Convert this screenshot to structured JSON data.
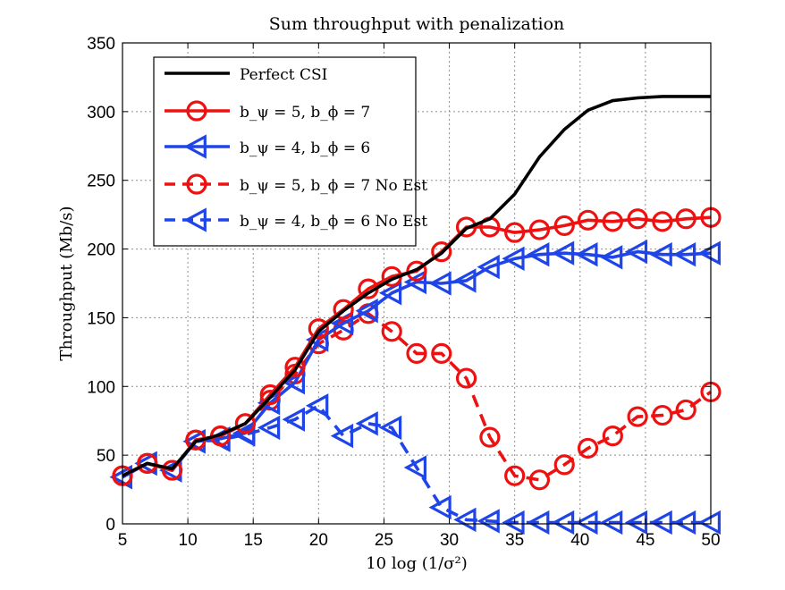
{
  "chart_data": {
    "type": "line",
    "title": "Sum throughput with penalization",
    "xlabel": "10 log (1/σ²)",
    "ylabel": "Throughput (Mb/s)",
    "xlim": [
      5,
      50
    ],
    "ylim": [
      0,
      350
    ],
    "xticks": [
      5,
      10,
      15,
      20,
      25,
      30,
      35,
      40,
      45,
      50
    ],
    "yticks": [
      0,
      50,
      100,
      150,
      200,
      250,
      300,
      350
    ],
    "grid": true,
    "legend_position": "top-left",
    "series": [
      {
        "name": "Perfect CSI",
        "legend_label": "Perfect CSI",
        "color": "#000000",
        "dashed": false,
        "marker": "none",
        "x": [
          5,
          6.9,
          8.8,
          10.6,
          12.5,
          14.4,
          16.3,
          18.2,
          20,
          21.9,
          23.8,
          25.6,
          27.5,
          29.4,
          31.3,
          33.1,
          35,
          36.9,
          38.8,
          40.6,
          42.5,
          44.4,
          46.3,
          48.1,
          50
        ],
        "y": [
          35,
          44,
          40,
          60,
          65,
          73,
          92,
          112,
          140,
          155,
          168,
          178,
          185,
          197,
          215,
          222,
          240,
          267,
          287,
          301,
          308,
          310,
          311,
          311,
          311
        ]
      },
      {
        "name": "b_psi = 5, b_phi = 7",
        "legend_label": "b_ψ = 5, b_ϕ = 7",
        "color": "#ee1111",
        "dashed": false,
        "marker": "circle",
        "x": [
          5,
          6.9,
          8.8,
          10.6,
          12.5,
          14.4,
          16.3,
          18.2,
          20,
          21.9,
          23.8,
          25.6,
          27.5,
          29.4,
          31.3,
          33.1,
          35,
          36.9,
          38.8,
          40.6,
          42.5,
          44.4,
          46.3,
          48.1,
          50
        ],
        "y": [
          35,
          44,
          39,
          61,
          64,
          73,
          94,
          114,
          142,
          156,
          171,
          180,
          184,
          198,
          216,
          216,
          212,
          214,
          217,
          221,
          220,
          222,
          220,
          222,
          223
        ]
      },
      {
        "name": "b_psi = 4, b_phi = 6",
        "legend_label": "b_ψ = 4, b_ϕ = 6",
        "color": "#1f45e8",
        "dashed": false,
        "marker": "triangle-left",
        "x": [
          5,
          6.9,
          8.8,
          10.6,
          12.5,
          14.4,
          16.3,
          18.2,
          20,
          21.9,
          23.8,
          25.6,
          27.5,
          29.4,
          31.3,
          33.1,
          35,
          36.9,
          38.8,
          40.6,
          42.5,
          44.4,
          46.3,
          48.1,
          50
        ],
        "y": [
          34,
          44,
          39,
          60,
          62,
          66,
          88,
          103,
          134,
          146,
          155,
          168,
          176,
          175,
          177,
          187,
          193,
          196,
          197,
          196,
          194,
          198,
          196,
          196,
          197
        ]
      },
      {
        "name": "b_psi = 5, b_phi = 7 No Est",
        "legend_label": "b_ψ = 5, b_ϕ = 7 No Est",
        "color": "#ee1111",
        "dashed": true,
        "marker": "circle",
        "x": [
          5,
          6.9,
          8.8,
          10.6,
          12.5,
          14.4,
          16.3,
          18.2,
          20,
          21.9,
          23.8,
          25.6,
          27.5,
          29.4,
          31.3,
          33.1,
          35,
          36.9,
          38.8,
          40.6,
          42.5,
          44.4,
          46.3,
          48.1,
          50
        ],
        "y": [
          35,
          44,
          39,
          61,
          64,
          73,
          90,
          109,
          131,
          141,
          153,
          140,
          124,
          124,
          106,
          63,
          35,
          32,
          43,
          55,
          64,
          78,
          79,
          83,
          96
        ]
      },
      {
        "name": "b_psi = 4, b_phi = 6 No Est",
        "legend_label": "b_ψ = 4, b_ϕ = 6 No Est",
        "color": "#1f45e8",
        "dashed": true,
        "marker": "triangle-left",
        "x": [
          5,
          6.9,
          8.8,
          10.6,
          12.5,
          14.4,
          16.3,
          18.2,
          20,
          21.9,
          23.8,
          25.6,
          27.5,
          29.4,
          31.3,
          33.1,
          35,
          36.9,
          38.8,
          40.6,
          42.5,
          44.4,
          46.3,
          48.1,
          50
        ],
        "y": [
          34,
          44,
          39,
          60,
          61,
          65,
          70,
          76,
          86,
          64,
          73,
          70,
          41,
          12,
          3,
          2,
          1,
          1,
          1,
          1,
          1,
          1,
          1,
          1,
          1
        ]
      }
    ]
  }
}
